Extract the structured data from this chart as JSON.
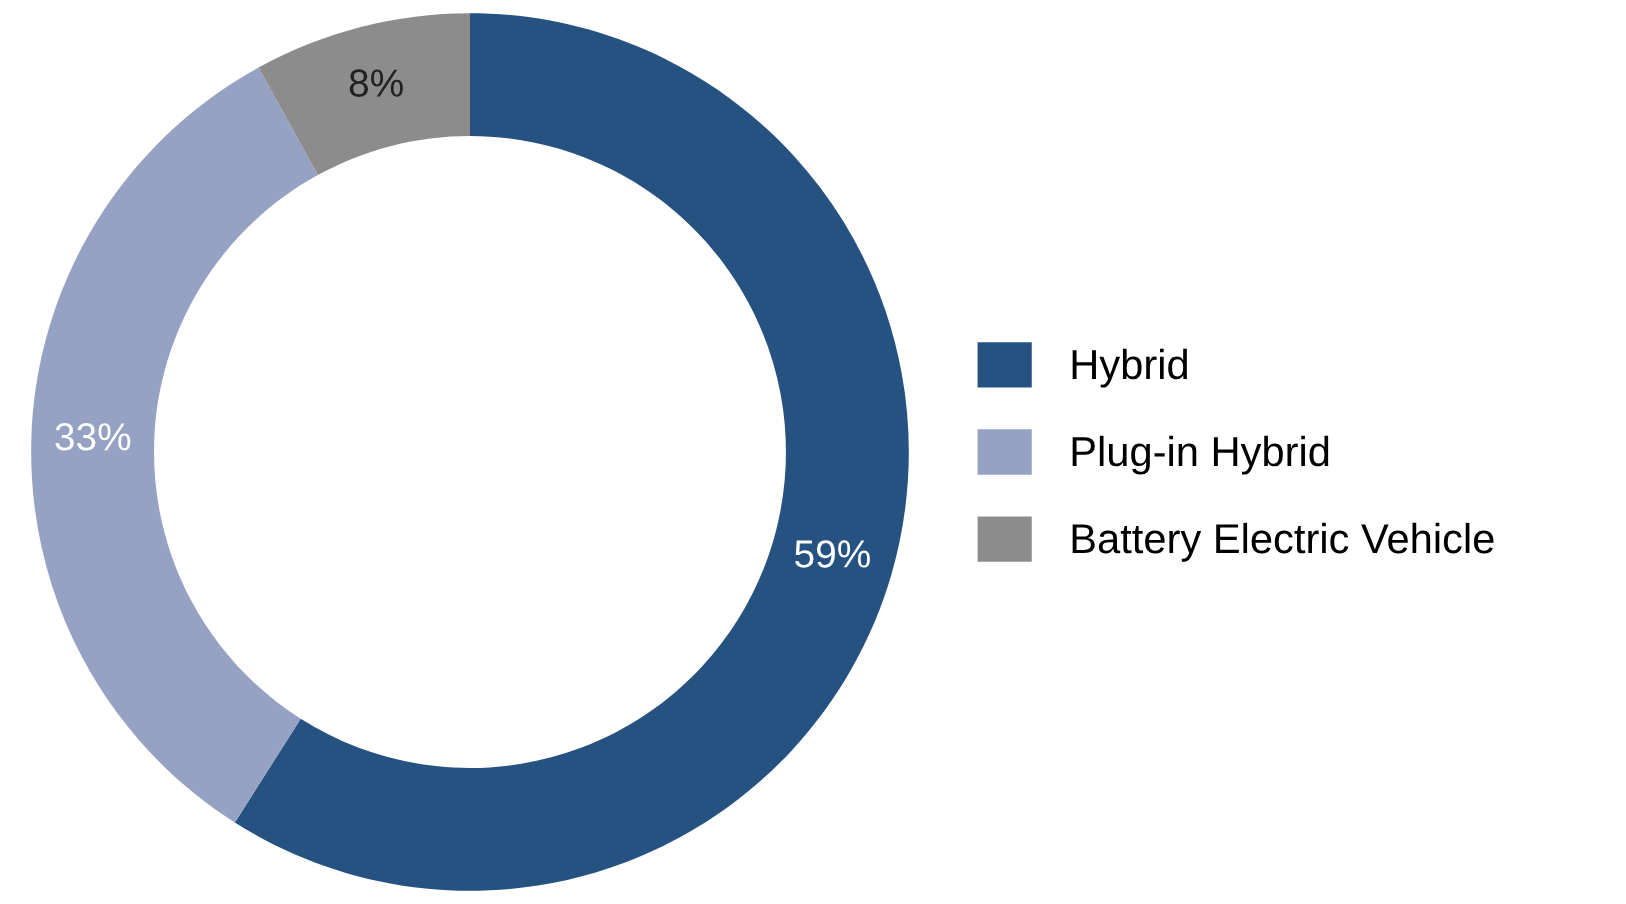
{
  "chart_data": {
    "type": "donut",
    "categories": [
      "Hybrid",
      "Plug-in Hybrid",
      "Battery Electric Vehicle"
    ],
    "values": [
      59,
      33,
      8
    ],
    "colors": [
      "#265282",
      "#96a2c4",
      "#8c8c8c"
    ],
    "value_labels": [
      "59%",
      "33%",
      "8%"
    ],
    "legend": "right"
  }
}
